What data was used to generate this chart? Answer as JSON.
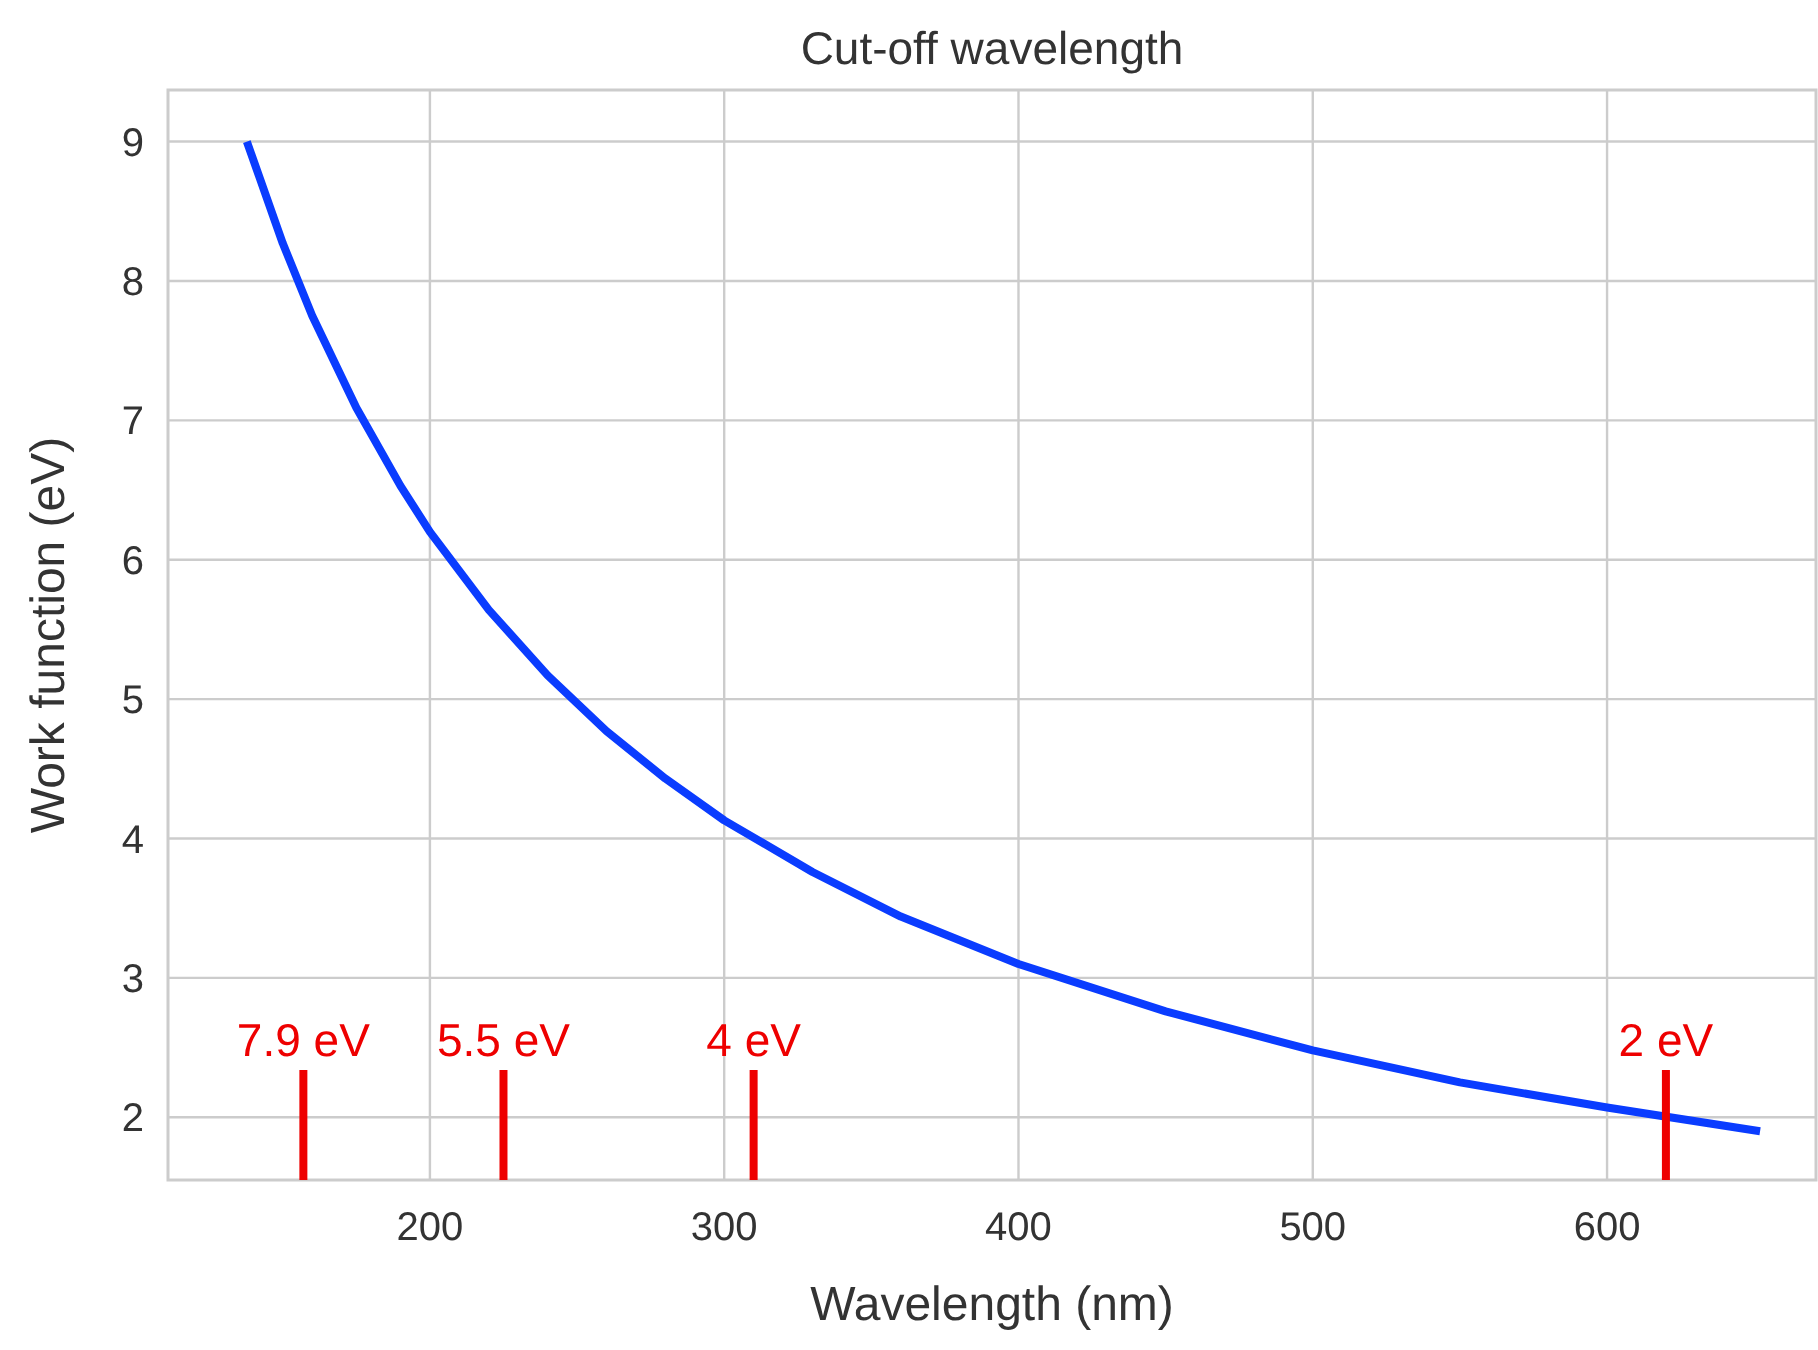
{
  "chart_data": {
    "type": "line",
    "title": "Cut-off wavelength",
    "xlabel": "Wavelength (nm)",
    "ylabel": "Work function (eV)",
    "x": [
      137.8,
      150,
      160,
      175,
      190,
      200,
      220,
      240,
      260,
      280,
      300,
      330,
      360,
      400,
      450,
      500,
      550,
      600,
      652
    ],
    "series": [
      {
        "color": "#0a3cff",
        "values": [
          9.0,
          8.27,
          7.75,
          7.09,
          6.53,
          6.2,
          5.64,
          5.17,
          4.77,
          4.43,
          4.13,
          3.76,
          3.44,
          3.1,
          2.76,
          2.48,
          2.25,
          2.07,
          1.9
        ]
      }
    ],
    "xlim": [
      111,
      671
    ],
    "xticks": [
      200,
      300,
      400,
      500,
      600
    ],
    "ylim": [
      1.55,
      9.37
    ],
    "yticks": [
      2,
      3,
      4,
      5,
      6,
      7,
      8,
      9
    ],
    "grid": true,
    "line_style": "solid",
    "marker": "none",
    "ref_lines": [
      {
        "axis": "x",
        "value": 157,
        "label": "7.9 eV",
        "color": "#ee0000"
      },
      {
        "axis": "x",
        "value": 225,
        "label": "5.5 eV",
        "color": "#ee0000"
      },
      {
        "axis": "x",
        "value": 310,
        "label": "4 eV",
        "color": "#ee0000"
      },
      {
        "axis": "x",
        "value": 620,
        "label": "2 eV",
        "color": "#ee0000"
      }
    ]
  }
}
